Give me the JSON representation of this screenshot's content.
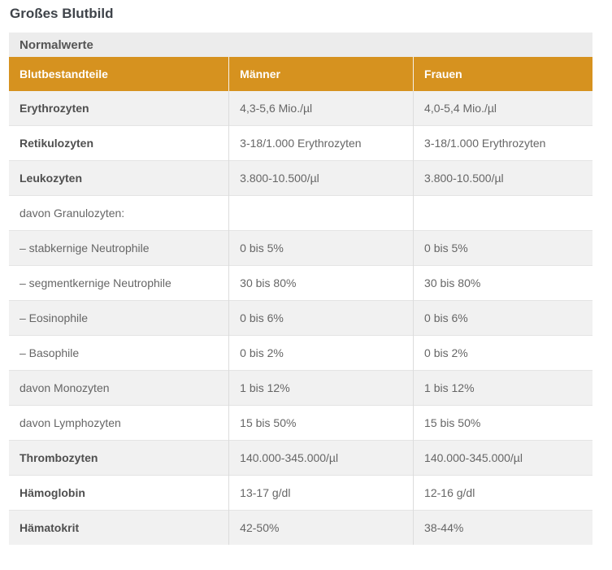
{
  "page": {
    "title": "Großes Blutbild"
  },
  "colors": {
    "header_bg": "#d6921f",
    "header_text": "#ffffff",
    "section_bg": "#ececec",
    "stripe_bg": "#f1f1f1",
    "body_text": "#666666",
    "title_text": "#3f444a"
  },
  "table": {
    "section_title": "Normalwerte",
    "columns": [
      "Blutbestandteile",
      "Männer",
      "Frauen"
    ],
    "rows": [
      {
        "label": "Erythrozyten",
        "bold": true,
        "maenner": "4,3-5,6 Mio./µl",
        "frauen": "4,0-5,4 Mio./µl"
      },
      {
        "label": "Retikulozyten",
        "bold": true,
        "maenner": "3-18/1.000 Erythrozyten",
        "frauen": "3-18/1.000 Erythrozyten"
      },
      {
        "label": "Leukozyten",
        "bold": true,
        "maenner": "3.800-10.500/µl",
        "frauen": "3.800-10.500/µl"
      },
      {
        "label": "davon Granulozyten:",
        "bold": false,
        "maenner": "",
        "frauen": ""
      },
      {
        "label": "– stabkernige Neutrophile",
        "bold": false,
        "maenner": "0 bis 5%",
        "frauen": "0 bis 5%"
      },
      {
        "label": "– segmentkernige Neutrophile",
        "bold": false,
        "maenner": "30 bis 80%",
        "frauen": "30 bis 80%"
      },
      {
        "label": "– Eosinophile",
        "bold": false,
        "maenner": "0 bis 6%",
        "frauen": "0 bis 6%"
      },
      {
        "label": "– Basophile",
        "bold": false,
        "maenner": "0 bis 2%",
        "frauen": "0 bis 2%"
      },
      {
        "label": "davon Monozyten",
        "bold": false,
        "maenner": "1 bis 12%",
        "frauen": "1 bis 12%"
      },
      {
        "label": "davon Lymphozyten",
        "bold": false,
        "maenner": "15 bis 50%",
        "frauen": "15 bis 50%"
      },
      {
        "label": "Thrombozyten",
        "bold": true,
        "maenner": "140.000-345.000/µl",
        "frauen": "140.000-345.000/µl"
      },
      {
        "label": "Hämoglobin",
        "bold": true,
        "maenner": "13-17 g/dl",
        "frauen": "12-16 g/dl"
      },
      {
        "label": "Hämatokrit",
        "bold": true,
        "maenner": "42-50%",
        "frauen": "38-44%"
      }
    ]
  }
}
